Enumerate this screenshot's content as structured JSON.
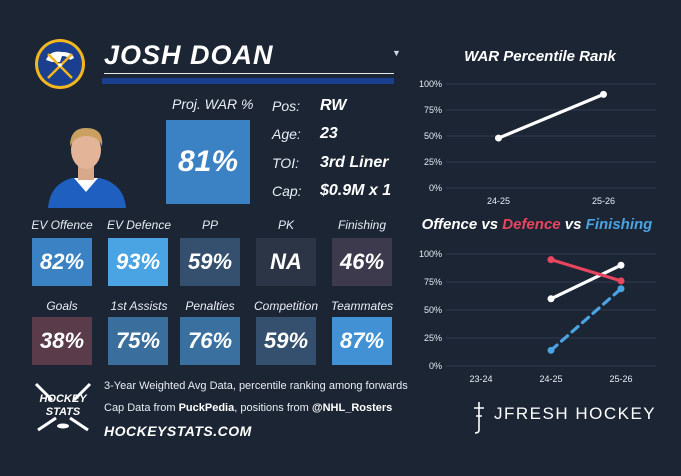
{
  "player": {
    "name": "JOSH DOAN",
    "proj_war_label": "Proj. WAR %",
    "proj_war_value": "81%",
    "info": [
      {
        "label": "Pos:",
        "value": "RW"
      },
      {
        "label": "Age:",
        "value": "23"
      },
      {
        "label": "TOI:",
        "value": "3rd Liner"
      },
      {
        "label": "Cap:",
        "value": "$0.9M x 1"
      }
    ]
  },
  "tiles_row1": [
    {
      "label": "EV Offence",
      "value": "82%",
      "color": "#3b82c4"
    },
    {
      "label": "EV Defence",
      "value": "93%",
      "color": "#4aa3e3"
    },
    {
      "label": "PP",
      "value": "59%",
      "color": "#34506e"
    },
    {
      "label": "PK",
      "value": "NA",
      "color": "#2b3545"
    },
    {
      "label": "Finishing",
      "value": "46%",
      "color": "#3e3a4d"
    }
  ],
  "tiles_row2": [
    {
      "label": "Goals",
      "value": "38%",
      "color": "#5a3b4a"
    },
    {
      "label": "1st Assists",
      "value": "75%",
      "color": "#3a6e9c"
    },
    {
      "label": "Penalties",
      "value": "76%",
      "color": "#3a70a0"
    },
    {
      "label": "Competition",
      "value": "59%",
      "color": "#34506e"
    },
    {
      "label": "Teammates",
      "value": "87%",
      "color": "#4291d4"
    }
  ],
  "footer": {
    "line1": "3-Year Weighted Avg Data, percentile ranking among forwards",
    "line2_prefix": "Cap Data from ",
    "line2_puck": "PuckPedia",
    "line2_mid": ", positions from ",
    "line2_rosters": "@NHL_Rosters",
    "site": "HOCKEYSTATS.COM",
    "logo_text_1": "HOCKEY",
    "logo_text_2": "STATS"
  },
  "brand": "JFRESH HOCKEY",
  "colors": {
    "background": "#1c2534",
    "underline": "#1b3f8f",
    "offence": "#ffffff",
    "defence": "#e8455e",
    "finishing": "#4aa3e3"
  },
  "chart_data": [
    {
      "type": "line",
      "title": "WAR Percentile Rank",
      "categories": [
        "24-25",
        "25-26"
      ],
      "ylim": [
        0,
        100
      ],
      "yticks": [
        "0%",
        "25%",
        "50%",
        "75%",
        "100%"
      ],
      "series": [
        {
          "values": [
            48,
            90
          ],
          "color": "#ffffff"
        }
      ]
    },
    {
      "type": "line",
      "title_parts": [
        {
          "text": "Offence",
          "color": "#ffffff"
        },
        {
          "text": " vs ",
          "color": "#ffffff"
        },
        {
          "text": "Defence",
          "color": "#e8455e"
        },
        {
          "text": " vs ",
          "color": "#ffffff"
        },
        {
          "text": "Finishing",
          "color": "#4aa3e3"
        }
      ],
      "categories": [
        "23-24",
        "24-25",
        "25-26"
      ],
      "ylim": [
        0,
        100
      ],
      "yticks": [
        "0%",
        "25%",
        "50%",
        "75%",
        "100%"
      ],
      "series": [
        {
          "name": "Offence",
          "values": [
            null,
            60,
            90
          ],
          "color": "#ffffff",
          "dash": false
        },
        {
          "name": "Defence",
          "values": [
            null,
            95,
            76
          ],
          "color": "#e8455e",
          "dash": false
        },
        {
          "name": "Finishing",
          "values": [
            null,
            14,
            69
          ],
          "color": "#4aa3e3",
          "dash": true
        }
      ]
    }
  ]
}
